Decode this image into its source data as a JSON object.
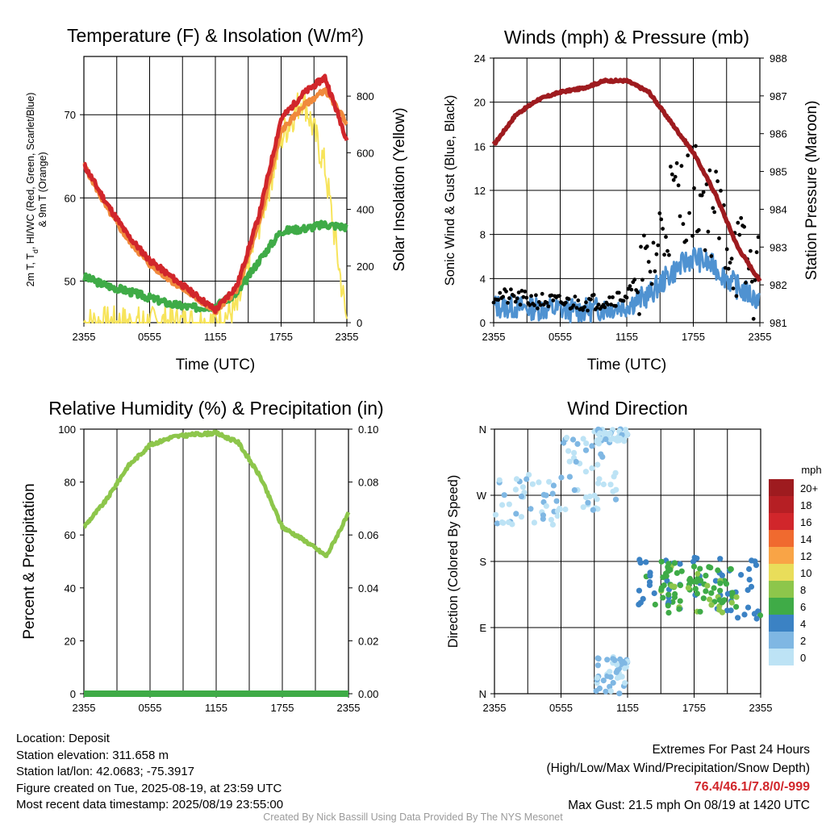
{
  "chart_data": [
    {
      "type": "line",
      "title": "Temperature (F) & Insolation (W/m²)",
      "xlabel": "Time (UTC)",
      "ylabel_lines": [
        "2m T, T",
        "d",
        ", HI/WC (Red, Green, Scarlet/Blue)",
        "& 9m T (Orange)"
      ],
      "ylabel2": "Solar Insolation (Yellow)",
      "x_ticks": [
        "2355",
        "0555",
        "1155",
        "1755",
        "2355"
      ],
      "ylim": [
        45,
        77
      ],
      "y_ticks": [
        50,
        60,
        70
      ],
      "y2lim": [
        0,
        940
      ],
      "y2_ticks": [
        0,
        200,
        400,
        600,
        800
      ],
      "x_hours": [
        0,
        2,
        4,
        6,
        8,
        10,
        12,
        14,
        16,
        18,
        20,
        22,
        24
      ],
      "series": [
        {
          "color": "#d1262b",
          "axis": "left",
          "values": [
            64,
            59.5,
            55.5,
            52.5,
            50.5,
            48.5,
            46.5,
            49.5,
            58,
            69.5,
            72.5,
            74.5,
            67
          ]
        },
        {
          "color": "#f08a3c",
          "axis": "left",
          "values": [
            64,
            59,
            55,
            52,
            50,
            48.2,
            46.3,
            49,
            57,
            68,
            71,
            73,
            69
          ]
        },
        {
          "color": "#3fab47",
          "axis": "left",
          "values": [
            50.5,
            49.5,
            48.8,
            48,
            47.2,
            46.8,
            47,
            48.5,
            52.5,
            56,
            56.3,
            56.8,
            56.5
          ]
        },
        {
          "color": "#f7e45b",
          "axis": "right",
          "values": [
            0,
            0,
            0,
            0,
            0,
            0,
            0,
            50,
            350,
            650,
            800,
            550,
            0
          ]
        }
      ]
    },
    {
      "type": "line",
      "title": "Winds (mph) & Pressure (mb)",
      "xlabel": "Time (UTC)",
      "ylabel": "Sonic Wind & Gust (Blue, Black)",
      "ylabel2": "Station Pressure (Maroon)",
      "x_ticks": [
        "2355",
        "0555",
        "1155",
        "1755",
        "2355"
      ],
      "ylim": [
        0,
        24
      ],
      "y_ticks": [
        0,
        4,
        8,
        12,
        16,
        20,
        24
      ],
      "y2lim": [
        981,
        988
      ],
      "y2_ticks": [
        981,
        982,
        983,
        984,
        985,
        986,
        987,
        988
      ],
      "x_hours": [
        0,
        2,
        4,
        6,
        8,
        10,
        12,
        14,
        16,
        18,
        20,
        22,
        24
      ],
      "series": [
        {
          "color": "#4f92d1",
          "axis": "left",
          "values": [
            1.5,
            1.4,
            1.3,
            1.2,
            1.1,
            1.3,
            1.6,
            2.5,
            4.5,
            6,
            5,
            3.2,
            2
          ]
        },
        {
          "color": "#000000",
          "axis": "left",
          "values": [
            2.5,
            2.2,
            2,
            1.8,
            1.8,
            2,
            2.5,
            4.5,
            11,
            12,
            10,
            6,
            3.5
          ]
        },
        {
          "color": "#9e1b1f",
          "axis": "right",
          "values": [
            985.7,
            986.5,
            986.9,
            987.1,
            987.2,
            987.4,
            987.4,
            987.1,
            986.3,
            985.5,
            984.4,
            983,
            982.1
          ]
        }
      ]
    },
    {
      "type": "line",
      "title": "Relative Humidity (%) & Precipitation (in)",
      "ylabel": "Percent & Precipitation",
      "x_ticks": [
        "2355",
        "0555",
        "1155",
        "1755",
        "2355"
      ],
      "ylim": [
        0,
        100
      ],
      "y_ticks": [
        0,
        20,
        40,
        60,
        80,
        100
      ],
      "y2lim": [
        0,
        0.1
      ],
      "y2_ticks": [
        "0.00",
        "0.02",
        "0.04",
        "0.06",
        "0.08",
        "0.10"
      ],
      "x_hours": [
        0,
        2,
        4,
        6,
        8,
        10,
        12,
        14,
        16,
        18,
        20,
        22,
        24
      ],
      "series": [
        {
          "color": "#8dc64b",
          "axis": "left",
          "values": [
            63,
            73,
            86,
            94,
            97,
            98,
            98.5,
            95,
            82,
            63,
            58,
            52,
            68
          ]
        },
        {
          "color": "#3fab47",
          "axis": "right",
          "values": [
            0,
            0,
            0,
            0,
            0,
            0,
            0,
            0,
            0,
            0,
            0,
            0,
            0
          ]
        }
      ]
    },
    {
      "type": "scatter",
      "title": "Wind Direction",
      "ylabel": "Direction (Colored By Speed)",
      "x_ticks": [
        "2355",
        "0555",
        "1155",
        "1755",
        "2355"
      ],
      "y_ticks": [
        "N",
        "E",
        "S",
        "W",
        "N"
      ],
      "ylim": [
        0,
        360
      ],
      "clusters": [
        {
          "x_hours": [
            0,
            6
          ],
          "dir": [
            230,
            300
          ],
          "speed": 1
        },
        {
          "x_hours": [
            6,
            11
          ],
          "dir": [
            250,
            350
          ],
          "speed": 1
        },
        {
          "x_hours": [
            9,
            12
          ],
          "dir": [
            340,
            360
          ],
          "speed": 1
        },
        {
          "x_hours": [
            9,
            12
          ],
          "dir": [
            0,
            50
          ],
          "speed": 2
        },
        {
          "x_hours": [
            13,
            24
          ],
          "dir": [
            100,
            190
          ],
          "speed": 5
        },
        {
          "x_hours": [
            15,
            22
          ],
          "dir": [
            110,
            180
          ],
          "speed": 7
        }
      ],
      "colorbar": {
        "unit": "mph",
        "labels": [
          "20+",
          "18",
          "16",
          "14",
          "12",
          "10",
          "8",
          "6",
          "4",
          "2",
          "0"
        ],
        "colors": [
          "#9e1b1f",
          "#b61f24",
          "#d1262b",
          "#f06a2f",
          "#f9a446",
          "#e9dd5a",
          "#8dc64b",
          "#3fab47",
          "#3b82c4",
          "#7fb7e3",
          "#bde3f5"
        ]
      }
    }
  ],
  "info": {
    "location": "Location: Deposit",
    "elevation": "Station elevation: 311.658 m",
    "latlon": "Station lat/lon: 42.0683; -75.3917",
    "created": "Figure created on Tue, 2025-08-19, at 23:59 UTC",
    "recent": "Most recent data timestamp: 2025/08/19 23:55:00"
  },
  "extremes": {
    "title": "Extremes For Past 24 Hours",
    "subtitle": "(High/Low/Max Wind/Precipitation/Snow Depth)",
    "values": "76.4/46.1/7.8/0/-999",
    "gust": "Max Gust: 21.5 mph On 08/19 at 1420 UTC"
  },
  "credit": "Created By Nick Bassill Using Data Provided By The NYS Mesonet"
}
